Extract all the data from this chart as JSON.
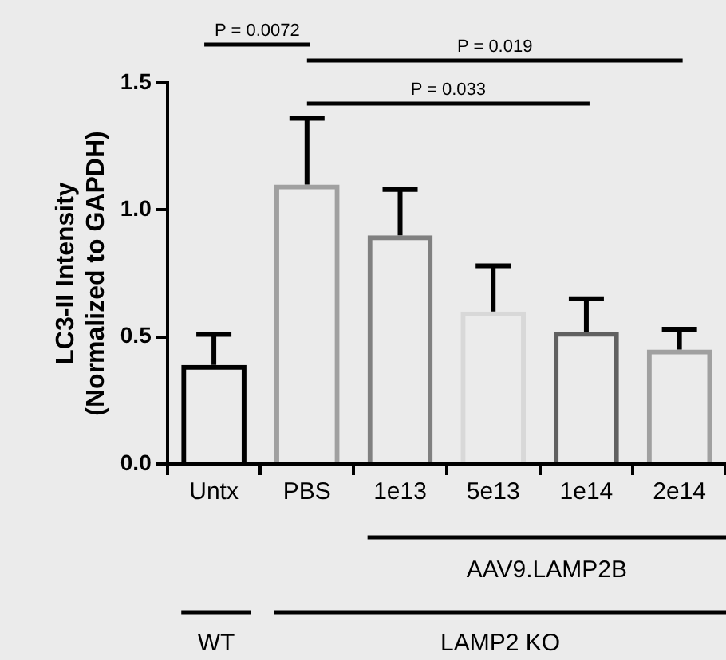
{
  "chart_data": {
    "type": "bar",
    "ylabel": "LC3-II Intensity\n(Normalized to GAPDH)",
    "categories": [
      "Untx",
      "PBS",
      "1e13",
      "5e13",
      "1e14",
      "2e14"
    ],
    "values": [
      0.39,
      1.1,
      0.9,
      0.6,
      0.52,
      0.45
    ],
    "errors": [
      [
        0.39,
        0.51
      ],
      [
        1.1,
        1.36
      ],
      [
        0.9,
        1.08
      ],
      [
        0.6,
        0.78
      ],
      [
        0.52,
        0.65
      ],
      [
        0.45,
        0.53
      ]
    ],
    "colors": [
      "#000000",
      "#a0a0a0",
      "#808080",
      "#d8d8d8",
      "#606060",
      "#a0a0a0"
    ],
    "ylim": [
      0,
      1.5
    ],
    "yticks": [
      {
        "value": 0,
        "label": "0.0"
      },
      0.5,
      {
        "value": 1,
        "label": "1.0"
      },
      1.5
    ],
    "grid": false,
    "legend": false,
    "annotations": [
      "P = 0.0072",
      "P = 0.019",
      "P = 0.033",
      "AAV9.LAMP2B",
      "WT",
      "LAMP2 KO"
    ]
  }
}
